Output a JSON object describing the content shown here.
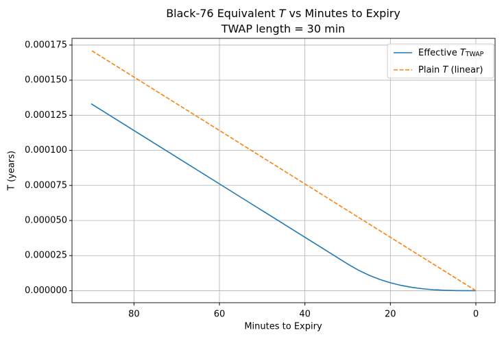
{
  "chart_data": {
    "type": "line",
    "title": "Black-76 Equivalent T vs Minutes to Expiry",
    "subtitle": "TWAP length = 30 min",
    "x_label": "Minutes to Expiry",
    "y_label": "T (years)",
    "x": [
      0,
      2.5,
      5,
      7.5,
      10,
      12.5,
      15,
      17.5,
      20,
      22.5,
      25,
      27.5,
      30,
      35,
      40,
      45,
      50,
      55,
      60,
      65,
      70,
      75,
      80,
      85,
      90
    ],
    "series": [
      {
        "name": "Effective T_TWAP",
        "color": "#1f77b4",
        "dash": false,
        "values": [
          0,
          1.1e-08,
          8.8e-08,
          2.97e-07,
          7.05e-07,
          1.376e-06,
          2.378e-06,
          3.777e-06,
          5.637e-06,
          8.027e-06,
          1.1011e-05,
          1.4655e-05,
          1.9026e-05,
          2.8539e-05,
          3.8052e-05,
          4.7565e-05,
          5.7078e-05,
          6.6591e-05,
          7.6104e-05,
          8.5616e-05,
          9.5129e-05,
          0.000104642,
          0.000114155,
          0.000123668,
          0.000133181
        ]
      },
      {
        "name": "Plain T (linear)",
        "color": "#ff7f0e",
        "dash": true,
        "values": [
          0,
          4.757e-06,
          9.513e-06,
          1.4269e-05,
          1.9026e-05,
          2.3782e-05,
          2.8539e-05,
          3.3295e-05,
          3.8052e-05,
          4.2808e-05,
          4.7565e-05,
          5.2321e-05,
          5.7078e-05,
          6.6591e-05,
          7.6104e-05,
          8.5616e-05,
          9.5129e-05,
          0.000104642,
          0.000114155,
          0.000123668,
          0.000133181,
          0.000142694,
          0.000152207,
          0.00016172,
          0.000171233
        ]
      }
    ],
    "xlim": [
      94.5,
      -4.5
    ],
    "xticks": [
      80,
      60,
      40,
      20,
      0
    ],
    "ylim": [
      -8.56e-06,
      0.0001798
    ],
    "yticks": [
      {
        "value": 0,
        "label": "0.000000"
      },
      {
        "value": 2.5e-05,
        "label": "0.000025"
      },
      {
        "value": 5e-05,
        "label": "0.000050"
      },
      {
        "value": 7.5e-05,
        "label": "0.000075"
      },
      {
        "value": 0.0001,
        "label": "0.000100"
      },
      {
        "value": 0.000125,
        "label": "0.000125"
      },
      {
        "value": 0.00015,
        "label": "0.000150"
      },
      {
        "value": 0.000175,
        "label": "0.000175"
      }
    ],
    "grid": true,
    "legend": "upper right"
  }
}
